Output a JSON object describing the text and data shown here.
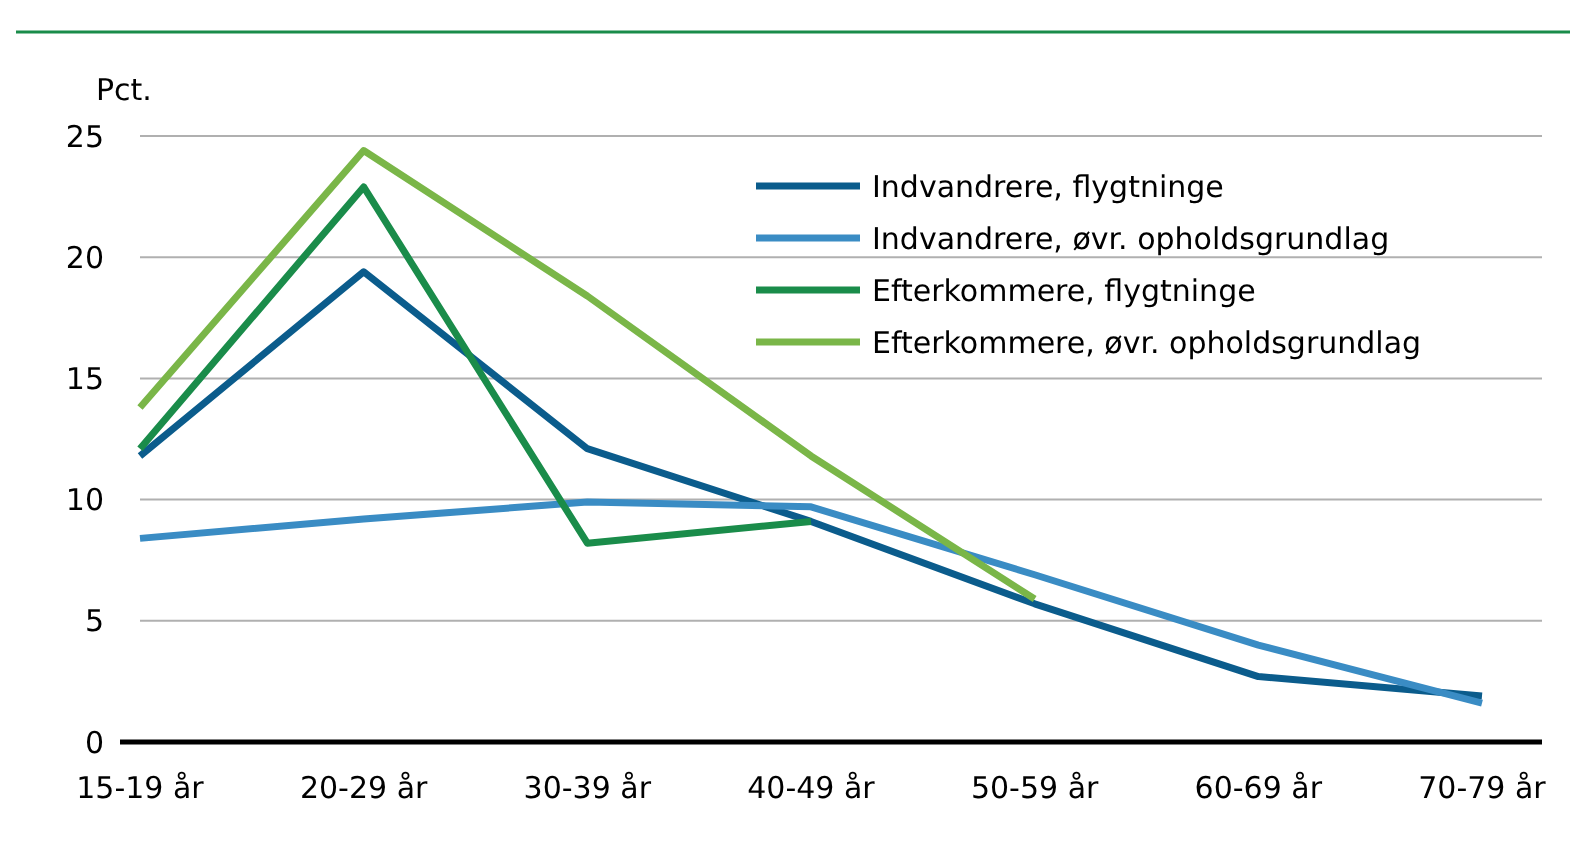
{
  "chart_data": {
    "type": "line",
    "ylabel": "Pct.",
    "categories": [
      "15-19 år",
      "20-29 år",
      "30-39 år",
      "40-49 år",
      "50-59 år",
      "60-69 år",
      "70-79 år"
    ],
    "series": [
      {
        "name": "Indvandrere, flygtninge",
        "color": "#0b5c8c",
        "values": [
          11.8,
          19.4,
          12.1,
          9.1,
          5.7,
          2.7,
          1.9
        ]
      },
      {
        "name": "Indvandrere, øvr. opholdsgrundlag",
        "color": "#3a8cc4",
        "values": [
          8.4,
          9.2,
          9.9,
          9.7,
          6.9,
          4.0,
          1.6
        ]
      },
      {
        "name": "Efterkommere, flygtninge",
        "color": "#1a8c4a",
        "values": [
          12.1,
          22.9,
          8.2,
          9.1,
          null,
          null,
          null
        ]
      },
      {
        "name": "Efterkommere, øvr. opholdsgrundlag",
        "color": "#7ab648",
        "values": [
          13.8,
          24.4,
          18.4,
          11.8,
          5.9,
          null,
          null
        ]
      }
    ],
    "ylim": [
      0,
      25
    ],
    "yticks": [
      0,
      5,
      10,
      15,
      20,
      25
    ],
    "grid": "y",
    "legend": "top right",
    "marker": "none",
    "line_style": "solid"
  }
}
